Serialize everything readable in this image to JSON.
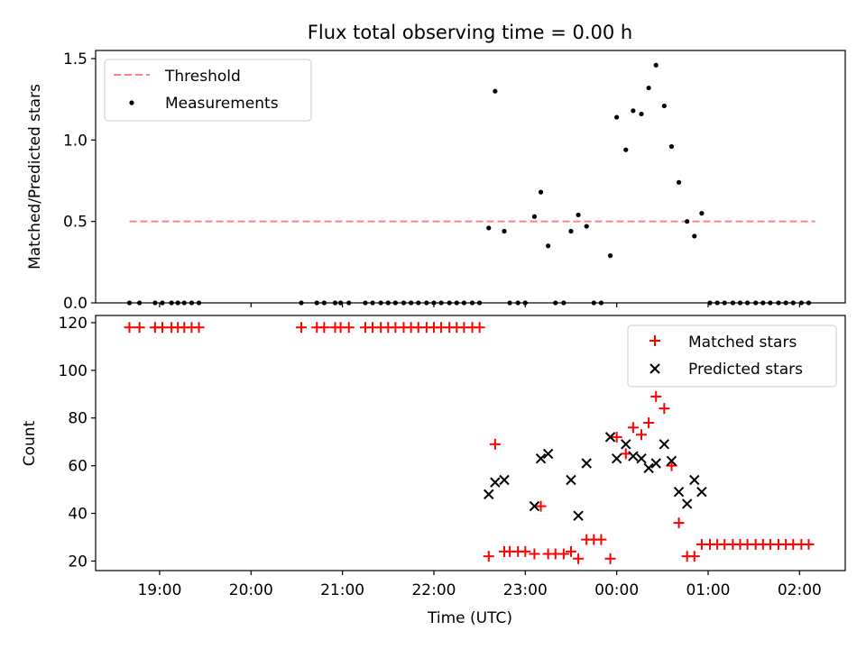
{
  "chart_data": [
    {
      "type": "scatter",
      "title": "Flux total observing time = 0.00 h",
      "xlabel": "",
      "ylabel": "Matched/Predicted stars",
      "ylim": [
        0,
        1.55
      ],
      "xlim": [
        18.3,
        26.5
      ],
      "yticks": [
        "0.0",
        "0.5",
        "1.0",
        "1.5"
      ],
      "legend": "top-left",
      "threshold": {
        "name": "Threshold",
        "value": 0.5,
        "x_range": [
          18.67,
          26.17
        ],
        "color": "#ff7f7f"
      },
      "series": [
        {
          "name": "Measurements",
          "color": "#000000",
          "points": [
            [
              18.67,
              0
            ],
            [
              18.78,
              0
            ],
            [
              18.95,
              0
            ],
            [
              19.03,
              0
            ],
            [
              19.13,
              0
            ],
            [
              19.2,
              0
            ],
            [
              19.27,
              0
            ],
            [
              19.35,
              0
            ],
            [
              19.43,
              0
            ],
            [
              20.55,
              0
            ],
            [
              20.72,
              0
            ],
            [
              20.8,
              0
            ],
            [
              20.92,
              0
            ],
            [
              20.98,
              0
            ],
            [
              21.07,
              0
            ],
            [
              21.25,
              0
            ],
            [
              21.33,
              0
            ],
            [
              21.42,
              0
            ],
            [
              21.5,
              0
            ],
            [
              21.58,
              0
            ],
            [
              21.67,
              0
            ],
            [
              21.75,
              0
            ],
            [
              21.83,
              0
            ],
            [
              21.92,
              0
            ],
            [
              22.0,
              0
            ],
            [
              22.08,
              0
            ],
            [
              22.17,
              0
            ],
            [
              22.25,
              0
            ],
            [
              22.33,
              0
            ],
            [
              22.42,
              0
            ],
            [
              22.5,
              0
            ],
            [
              22.6,
              0.46
            ],
            [
              22.67,
              1.3
            ],
            [
              22.77,
              0.44
            ],
            [
              22.83,
              0
            ],
            [
              22.92,
              0
            ],
            [
              23.0,
              0
            ],
            [
              23.1,
              0.53
            ],
            [
              23.17,
              0.68
            ],
            [
              23.25,
              0.35
            ],
            [
              23.33,
              0
            ],
            [
              23.42,
              0
            ],
            [
              23.5,
              0.44
            ],
            [
              23.58,
              0.54
            ],
            [
              23.67,
              0.47
            ],
            [
              23.75,
              0
            ],
            [
              23.83,
              0
            ],
            [
              23.93,
              0.29
            ],
            [
              24.0,
              1.14
            ],
            [
              24.1,
              0.94
            ],
            [
              24.18,
              1.18
            ],
            [
              24.27,
              1.16
            ],
            [
              24.35,
              1.32
            ],
            [
              24.43,
              1.46
            ],
            [
              24.52,
              1.21
            ],
            [
              24.6,
              0.96
            ],
            [
              24.68,
              0.74
            ],
            [
              24.77,
              0.5
            ],
            [
              24.85,
              0.41
            ],
            [
              24.93,
              0.55
            ],
            [
              25.02,
              0
            ],
            [
              25.1,
              0
            ],
            [
              25.18,
              0
            ],
            [
              25.27,
              0
            ],
            [
              25.35,
              0
            ],
            [
              25.43,
              0
            ],
            [
              25.52,
              0
            ],
            [
              25.6,
              0
            ],
            [
              25.68,
              0
            ],
            [
              25.77,
              0
            ],
            [
              25.85,
              0
            ],
            [
              25.93,
              0
            ],
            [
              26.02,
              0
            ],
            [
              26.1,
              0
            ]
          ]
        }
      ]
    },
    {
      "type": "scatter",
      "title": "",
      "xlabel": "Time (UTC)",
      "ylabel": "Count",
      "ylim": [
        16,
        123
      ],
      "xlim": [
        18.3,
        26.5
      ],
      "yticks": [
        "20",
        "40",
        "60",
        "80",
        "100",
        "120"
      ],
      "xticks": [
        {
          "value": 19,
          "label": "19:00"
        },
        {
          "value": 20,
          "label": "20:00"
        },
        {
          "value": 21,
          "label": "21:00"
        },
        {
          "value": 22,
          "label": "22:00"
        },
        {
          "value": 23,
          "label": "23:00"
        },
        {
          "value": 24,
          "label": "00:00"
        },
        {
          "value": 25,
          "label": "01:00"
        },
        {
          "value": 26,
          "label": "02:00"
        }
      ],
      "legend": "top-right",
      "series": [
        {
          "name": "Matched stars",
          "marker": "plus",
          "color": "#ff0000",
          "points": [
            [
              18.67,
              118
            ],
            [
              18.78,
              118
            ],
            [
              18.95,
              118
            ],
            [
              19.03,
              118
            ],
            [
              19.13,
              118
            ],
            [
              19.2,
              118
            ],
            [
              19.27,
              118
            ],
            [
              19.35,
              118
            ],
            [
              19.43,
              118
            ],
            [
              20.55,
              118
            ],
            [
              20.72,
              118
            ],
            [
              20.8,
              118
            ],
            [
              20.92,
              118
            ],
            [
              20.98,
              118
            ],
            [
              21.07,
              118
            ],
            [
              21.25,
              118
            ],
            [
              21.33,
              118
            ],
            [
              21.42,
              118
            ],
            [
              21.5,
              118
            ],
            [
              21.58,
              118
            ],
            [
              21.67,
              118
            ],
            [
              21.75,
              118
            ],
            [
              21.83,
              118
            ],
            [
              21.92,
              118
            ],
            [
              22.0,
              118
            ],
            [
              22.08,
              118
            ],
            [
              22.17,
              118
            ],
            [
              22.25,
              118
            ],
            [
              22.33,
              118
            ],
            [
              22.42,
              118
            ],
            [
              22.5,
              118
            ],
            [
              22.6,
              22
            ],
            [
              22.67,
              69
            ],
            [
              22.77,
              24
            ],
            [
              22.83,
              24
            ],
            [
              22.92,
              24
            ],
            [
              23.0,
              24
            ],
            [
              23.1,
              23
            ],
            [
              23.17,
              43
            ],
            [
              23.25,
              23
            ],
            [
              23.33,
              23
            ],
            [
              23.42,
              23
            ],
            [
              23.5,
              24
            ],
            [
              23.58,
              21
            ],
            [
              23.67,
              29
            ],
            [
              23.75,
              29
            ],
            [
              23.83,
              29
            ],
            [
              23.93,
              21
            ],
            [
              24.0,
              72
            ],
            [
              24.1,
              65
            ],
            [
              24.18,
              76
            ],
            [
              24.27,
              73
            ],
            [
              24.35,
              78
            ],
            [
              24.43,
              89
            ],
            [
              24.52,
              84
            ],
            [
              24.6,
              60
            ],
            [
              24.68,
              36
            ],
            [
              24.77,
              22
            ],
            [
              24.85,
              22
            ],
            [
              24.93,
              27
            ],
            [
              25.02,
              27
            ],
            [
              25.1,
              27
            ],
            [
              25.18,
              27
            ],
            [
              25.27,
              27
            ],
            [
              25.35,
              27
            ],
            [
              25.43,
              27
            ],
            [
              25.52,
              27
            ],
            [
              25.6,
              27
            ],
            [
              25.68,
              27
            ],
            [
              25.77,
              27
            ],
            [
              25.85,
              27
            ],
            [
              25.93,
              27
            ],
            [
              26.02,
              27
            ],
            [
              26.1,
              27
            ]
          ]
        },
        {
          "name": "Predicted stars",
          "marker": "x",
          "color": "#000000",
          "points": [
            [
              22.6,
              48
            ],
            [
              22.67,
              53
            ],
            [
              22.77,
              54
            ],
            [
              23.1,
              43
            ],
            [
              23.17,
              63
            ],
            [
              23.25,
              65
            ],
            [
              23.5,
              54
            ],
            [
              23.58,
              39
            ],
            [
              23.67,
              61
            ],
            [
              23.93,
              72
            ],
            [
              24.0,
              63
            ],
            [
              24.1,
              69
            ],
            [
              24.18,
              64
            ],
            [
              24.27,
              63
            ],
            [
              24.35,
              59
            ],
            [
              24.43,
              61
            ],
            [
              24.52,
              69
            ],
            [
              24.6,
              62
            ],
            [
              24.68,
              49
            ],
            [
              24.77,
              44
            ],
            [
              24.85,
              54
            ],
            [
              24.93,
              49
            ]
          ]
        }
      ]
    }
  ]
}
